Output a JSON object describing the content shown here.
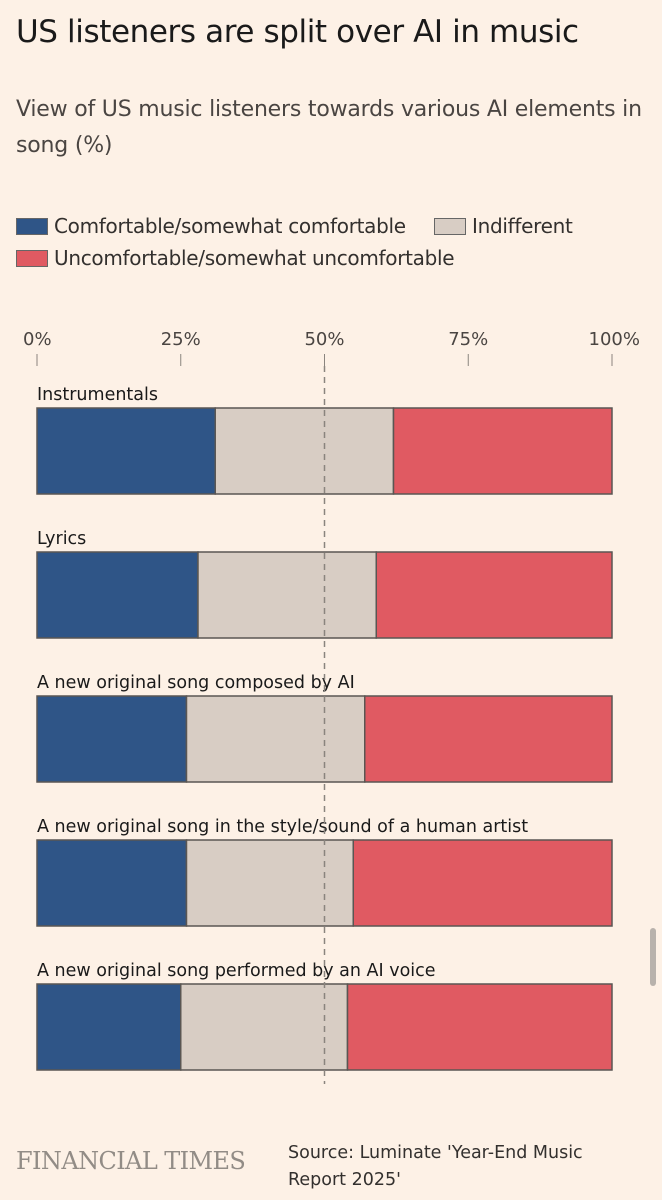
{
  "title": "US listeners are split over AI in music",
  "subtitle": "View of US music listeners towards various AI elements in song (%)",
  "legend": [
    {
      "label": "Comfortable/somewhat comfortable",
      "color": "#2f5587"
    },
    {
      "label": "Indifferent",
      "color": "#d8cdc4"
    },
    {
      "label": "Uncomfortable/somewhat uncomfortable",
      "color": "#e05a62"
    }
  ],
  "chart_data": {
    "type": "bar",
    "orientation": "horizontal",
    "stacked": true,
    "x_ticks": [
      "0%",
      "25%",
      "50%",
      "75%",
      "100%"
    ],
    "xlim": [
      0,
      100
    ],
    "reference_line": 50,
    "categories": [
      "Instrumentals",
      "Lyrics",
      "A new original song composed by AI",
      "A new original song in the style/sound of a human artist",
      "A new original song performed by an AI voice"
    ],
    "series": [
      {
        "name": "Comfortable/somewhat comfortable",
        "color": "#2f5587",
        "values": [
          31,
          28,
          26,
          26,
          25
        ]
      },
      {
        "name": "Indifferent",
        "color": "#d8cdc4",
        "values": [
          31,
          31,
          31,
          29,
          29
        ]
      },
      {
        "name": "Uncomfortable/somewhat uncomfortable",
        "color": "#e05a62",
        "values": [
          38,
          41,
          43,
          45,
          46
        ]
      }
    ]
  },
  "footer": {
    "brand": "FINANCIAL TIMES",
    "source": "Source: Luminate 'Year-End Music Report 2025'"
  }
}
